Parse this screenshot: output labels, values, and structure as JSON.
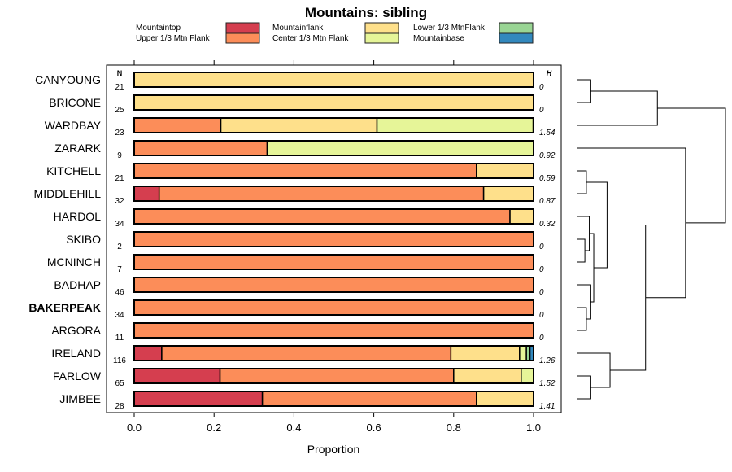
{
  "chart_data": {
    "type": "bar",
    "orientation": "horizontal-stacked-proportion",
    "title": "Mountains: sibling",
    "xlabel": "Proportion",
    "xlim": [
      0,
      1
    ],
    "xticks": [
      "0.0",
      "0.2",
      "0.4",
      "0.6",
      "0.8",
      "1.0"
    ],
    "n_header": "N",
    "h_header": "H",
    "legend": [
      {
        "name": "Mountaintop",
        "color": "#D53E4F"
      },
      {
        "name": "Upper 1/3 Mtn Flank",
        "color": "#FC8D59"
      },
      {
        "name": "Mountainflank",
        "color": "#FEE08B"
      },
      {
        "name": "Center 1/3 Mtn Flank",
        "color": "#E6F598"
      },
      {
        "name": "Lower 1/3 MtnFlank",
        "color": "#99D594"
      },
      {
        "name": "Mountainbase",
        "color": "#3288BD"
      }
    ],
    "categories": [
      "CANYOUNG",
      "BRICONE",
      "WARDBAY",
      "ZARARK",
      "KITCHELL",
      "MIDDLEHILL",
      "HARDOL",
      "SKIBO",
      "MCNINCH",
      "BADHAP",
      "BAKERPEAK",
      "ARGORA",
      "IRELAND",
      "FARLOW",
      "JIMBEE"
    ],
    "bold_category": "BAKERPEAK",
    "n": [
      21,
      25,
      23,
      9,
      21,
      32,
      34,
      2,
      7,
      46,
      34,
      11,
      116,
      65,
      28
    ],
    "h": [
      "0",
      "0",
      "1.54",
      "0.92",
      "0.59",
      "0.87",
      "0.32",
      "0",
      "0",
      "0",
      "0",
      "0",
      "1.26",
      "1.52",
      "1.41"
    ],
    "series": [
      {
        "name": "Mountaintop",
        "values": [
          0,
          0,
          0,
          0,
          0,
          0.0625,
          0,
          0,
          0,
          0,
          0,
          0,
          0.069,
          0.215,
          0.321
        ]
      },
      {
        "name": "Upper 1/3 Mtn Flank",
        "values": [
          0,
          0,
          0.217,
          0.333,
          0.857,
          0.8125,
          0.941,
          1,
          1,
          1,
          1,
          1,
          0.724,
          0.585,
          0.536
        ]
      },
      {
        "name": "Mountainflank",
        "values": [
          1,
          1,
          0.391,
          0,
          0.143,
          0.125,
          0.059,
          0,
          0,
          0,
          0,
          0,
          0.172,
          0.169,
          0.143
        ]
      },
      {
        "name": "Center 1/3 Mtn Flank",
        "values": [
          0,
          0,
          0.391,
          0.667,
          0,
          0,
          0,
          0,
          0,
          0,
          0,
          0,
          0.017,
          0.031,
          0
        ]
      },
      {
        "name": "Lower 1/3 MtnFlank",
        "values": [
          0,
          0,
          0,
          0,
          0,
          0,
          0,
          0,
          0,
          0,
          0,
          0,
          0.009,
          0,
          0
        ]
      },
      {
        "name": "Mountainbase",
        "values": [
          0,
          0,
          0,
          0,
          0,
          0,
          0,
          0,
          0,
          0,
          0,
          0,
          0.009,
          0,
          0
        ]
      }
    ],
    "dendrogram": [
      {
        "a": "CANYOUNG",
        "b": "BRICONE",
        "h": 0.09,
        "id": "A"
      },
      {
        "a": "A",
        "b": "WARDBAY",
        "h": 0.54,
        "id": "B"
      },
      {
        "a": "KITCHELL",
        "b": "MIDDLEHILL",
        "h": 0.06,
        "id": "C"
      },
      {
        "a": "SKIBO",
        "b": "MCNINCH",
        "h": 0.05,
        "id": "D1"
      },
      {
        "a": "HARDOL",
        "b": "D1",
        "h": 0.08,
        "id": "D2"
      },
      {
        "a": "BAKERPEAK",
        "b": "ARGORA",
        "h": 0.06,
        "id": "D5"
      },
      {
        "a": "BADHAP",
        "b": "D5",
        "h": 0.09,
        "id": "D3"
      },
      {
        "a": "D2",
        "b": "D3",
        "h": 0.11,
        "id": "D4"
      },
      {
        "a": "C",
        "b": "D4",
        "h": 0.2,
        "id": "E"
      },
      {
        "a": "FARLOW",
        "b": "JIMBEE",
        "h": 0.09,
        "id": "F"
      },
      {
        "a": "IRELAND",
        "b": "F",
        "h": 0.22,
        "id": "G"
      },
      {
        "a": "E",
        "b": "G",
        "h": 0.46,
        "id": "H"
      },
      {
        "a": "ZARARK",
        "b": "H",
        "h": 0.73,
        "id": "I"
      },
      {
        "a": "B",
        "b": "I",
        "h": 1.0,
        "id": "ROOT"
      }
    ]
  }
}
